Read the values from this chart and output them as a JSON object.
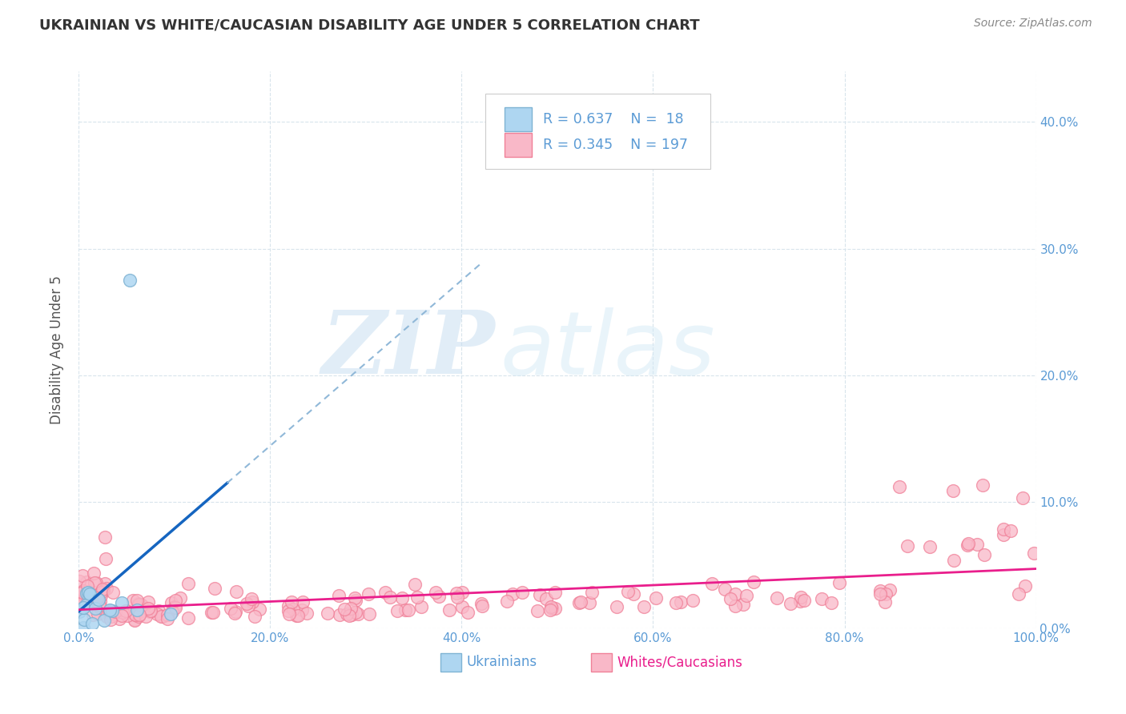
{
  "title": "UKRAINIAN VS WHITE/CAUCASIAN DISABILITY AGE UNDER 5 CORRELATION CHART",
  "source": "Source: ZipAtlas.com",
  "ylabel": "Disability Age Under 5",
  "xlim": [
    0,
    1.0
  ],
  "ylim": [
    0,
    0.44
  ],
  "xticks": [
    0.0,
    0.2,
    0.4,
    0.6,
    0.8,
    1.0
  ],
  "yticks": [
    0.0,
    0.1,
    0.2,
    0.3,
    0.4
  ],
  "ytick_labels_right": [
    "0.0%",
    "10.0%",
    "20.0%",
    "30.0%",
    "40.0%"
  ],
  "xtick_labels": [
    "0.0%",
    "20.0%",
    "40.0%",
    "60.0%",
    "80.0%",
    "100.0%"
  ],
  "legend_R_blue": "0.637",
  "legend_N_blue": "18",
  "legend_R_pink": "0.345",
  "legend_N_pink": "197",
  "watermark_zip": "ZIP",
  "watermark_atlas": "atlas",
  "legend_text_color": "#5b9bd5",
  "blue_line_color": "#1565c0",
  "pink_line_color": "#e91e8c",
  "dashed_line_color": "#90b8d8",
  "grid_color": "#d8e4ec",
  "background_color": "#ffffff",
  "blue_marker_color": "#aed6f1",
  "blue_marker_edge": "#7fb3d3",
  "pink_marker_color": "#f9b8c8",
  "pink_marker_edge": "#f08098",
  "title_color": "#333333",
  "source_color": "#888888",
  "ylabel_color": "#555555",
  "tick_color": "#5b9bd5",
  "bottom_legend_blue_color": "#5b9bd5",
  "bottom_legend_pink_color": "#e91e8c"
}
